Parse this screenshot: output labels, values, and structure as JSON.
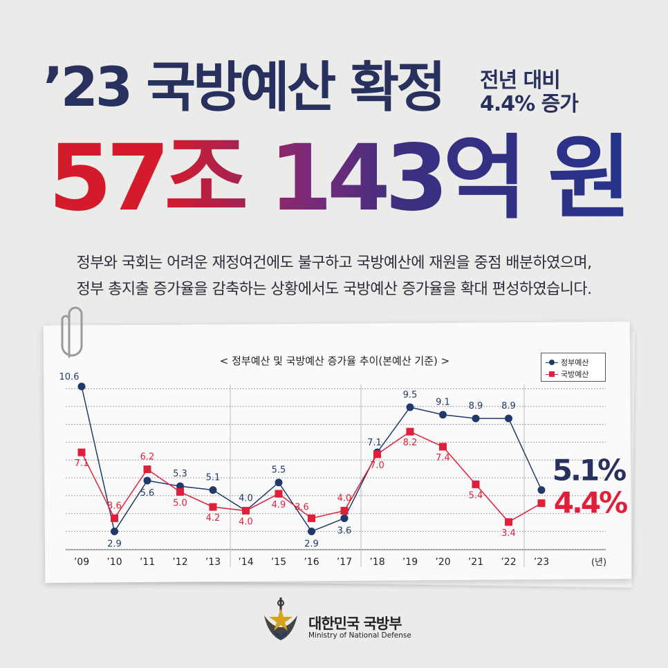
{
  "header": {
    "title": "’23 국방예산 확정",
    "sub_line1": "전년 대비",
    "sub_line2": "4.4% 증가",
    "amount": "57조 143억 원"
  },
  "description": {
    "line1": "정부와 국회는 어려운 재정여건에도 불구하고 국방예산에 재원을 중점 배분하였으며,",
    "line2": "정부 총지출 증가율을 감축하는 상황에서도 국방예산 증가율을 확대 편성하였습니다."
  },
  "colors": {
    "navy": "#1f3a68",
    "red": "#e0203a",
    "title_navy": "#28305e"
  },
  "chart_data": {
    "type": "line",
    "title": "< 정부예산 및 국방예산 증가율 추이(본예산 기준) >",
    "categories": [
      "’09",
      "’10",
      "’11",
      "’12",
      "’13",
      "’14",
      "’15",
      "’16",
      "’17",
      "’18",
      "’19",
      "’20",
      "’21",
      "’22",
      "’23"
    ],
    "x_unit": "(년)",
    "series": [
      {
        "name": "정부예산",
        "values": [
          10.6,
          2.9,
          5.6,
          5.3,
          5.1,
          4.0,
          5.5,
          2.9,
          3.6,
          7.1,
          9.5,
          9.1,
          8.9,
          8.9,
          5.1
        ],
        "labels": [
          "10.6",
          "2.9",
          "5.6",
          "5.3",
          "5.1",
          "4.0",
          "5.5",
          "2.9",
          "3.6",
          "7.1",
          "9.5",
          "9.1",
          "8.9",
          "8.9",
          "5.1%"
        ]
      },
      {
        "name": "국방예산",
        "values": [
          7.1,
          3.6,
          6.2,
          5.0,
          4.2,
          4.0,
          4.9,
          3.6,
          4.0,
          7.0,
          8.2,
          7.4,
          5.4,
          3.4,
          4.4
        ],
        "labels": [
          "7.1",
          "3.6",
          "6.2",
          "5.0",
          "4.2",
          "4.0",
          "4.9",
          "3.6",
          "4.0",
          "7.0",
          "8.2",
          "7.4",
          "5.4",
          "3.4",
          "4.4%"
        ]
      }
    ],
    "ylim": [
      2.0,
      11.0
    ],
    "grid": true,
    "legend_position": "top-right"
  },
  "footer": {
    "name_ko": "대한민국 국방부",
    "name_en": "Ministry of National Defense"
  }
}
